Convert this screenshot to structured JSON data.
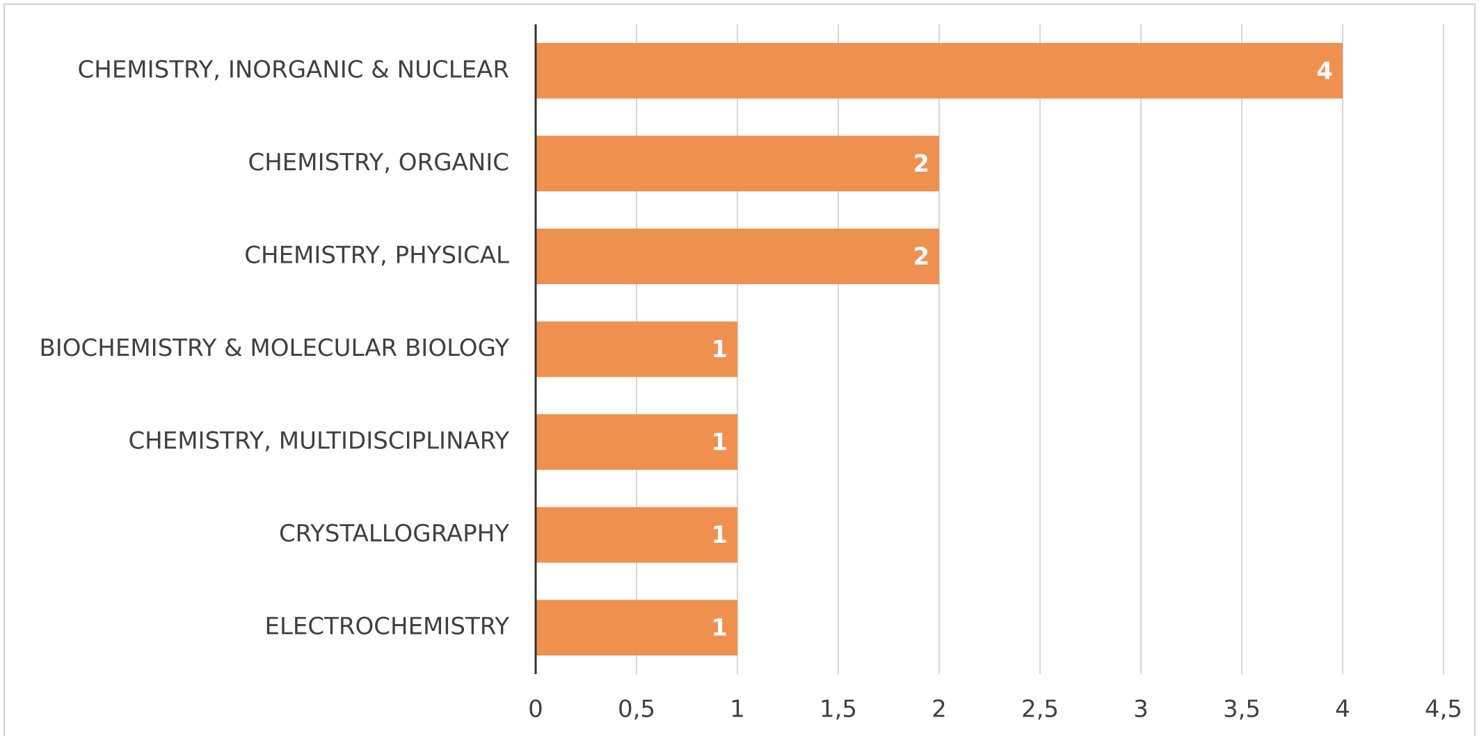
{
  "chart_data": {
    "type": "hbar",
    "categories": [
      "CHEMISTRY, INORGANIC & NUCLEAR",
      "CHEMISTRY, ORGANIC",
      "CHEMISTRY, PHYSICAL",
      "BIOCHEMISTRY & MOLECULAR BIOLOGY",
      "CHEMISTRY, MULTIDISCIPLINARY",
      "CRYSTALLOGRAPHY",
      "ELECTROCHEMISTRY"
    ],
    "values": [
      4,
      2,
      2,
      1,
      1,
      1,
      1
    ],
    "color": "#f0904f",
    "xlim": [
      0,
      4.5
    ],
    "xticks": [
      0,
      {
        "value": 0.5,
        "label": "0,5"
      },
      1,
      {
        "value": 1.5,
        "label": "1,5"
      },
      2,
      {
        "value": 2.5,
        "label": "2,5"
      },
      3,
      {
        "value": 3.5,
        "label": "3,5"
      },
      4,
      {
        "value": 4.5,
        "label": "4,5"
      }
    ],
    "grid": true
  }
}
